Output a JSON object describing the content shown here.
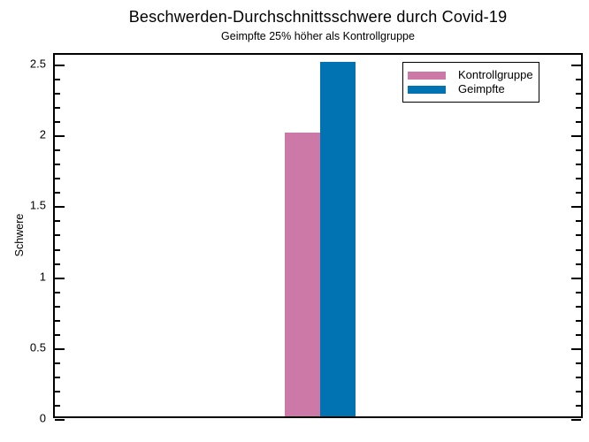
{
  "chart_data": {
    "type": "bar",
    "title": "Beschwerden-Durchschnittsschwere durch Covid-19",
    "subtitle": "Geimpfte 25% höher als Kontrollgruppe",
    "ylabel": "Schwere",
    "xlabel": "",
    "categories": [
      "Kontrollgruppe",
      "Geimpfte"
    ],
    "series": [
      {
        "name": "Kontrollgruppe",
        "value": 2.0,
        "color": "#CC79A7"
      },
      {
        "name": "Geimpfte",
        "value": 2.5,
        "color": "#0173B2"
      }
    ],
    "ylim": [
      0,
      2.575
    ],
    "yticks": [
      0,
      0.5,
      1,
      1.5,
      2,
      2.5
    ],
    "ytick_labels": [
      "0",
      "0.5",
      "1",
      "1.5",
      "2",
      "2.5"
    ],
    "minor_tick_step": 0.1,
    "grid": false,
    "legend_position": "top-right",
    "axis_color": "#000000",
    "background_color": "#FFFFFF"
  }
}
